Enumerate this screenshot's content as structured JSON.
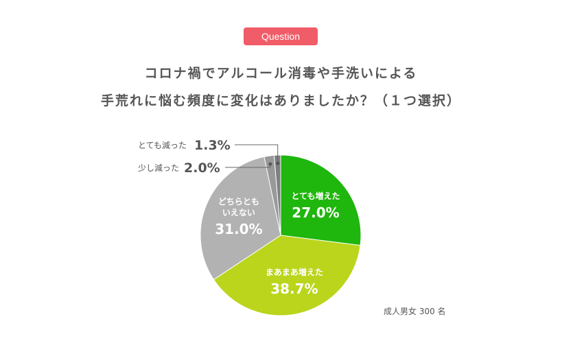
{
  "badge": "Question",
  "title_line1": "コロナ禍でアルコール消毒や手洗いによる",
  "title_line2": "手荒れに悩む頻度に変化はありましたか？（１つ選択）",
  "note": "成人男女 300 名",
  "chart_data": {
    "type": "pie",
    "slices": [
      {
        "label": [
          "とても増えた"
        ],
        "value": 27.0,
        "value_text": "27.0%",
        "color": "#1fb60d"
      },
      {
        "label": [
          "まあまあ増えた"
        ],
        "value": 38.7,
        "value_text": "38.7%",
        "color": "#bad51b"
      },
      {
        "label": [
          "どちらとも",
          "いえない"
        ],
        "value": 31.0,
        "value_text": "31.0%",
        "color": "#b2b2b2"
      },
      {
        "label": [
          "少し減った"
        ],
        "value": 2.0,
        "value_text": "2.0%",
        "color": "#999999"
      },
      {
        "label": [
          "とても減った"
        ],
        "value": 1.3,
        "value_text": "1.3%",
        "color": "#7f7f7f"
      }
    ],
    "start_angle": "12 o'clock",
    "direction": "clockwise",
    "legend": "none"
  }
}
